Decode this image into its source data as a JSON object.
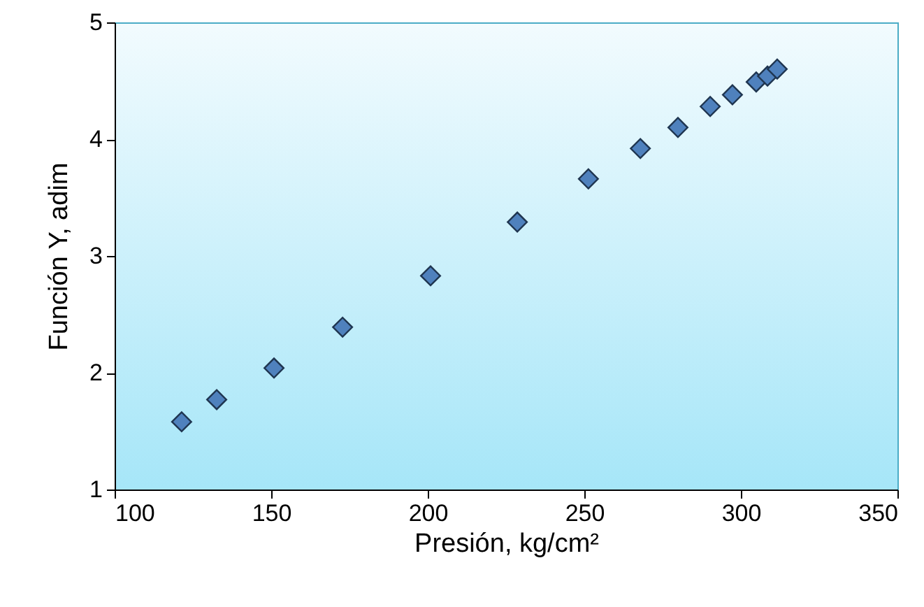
{
  "chart_data": {
    "type": "scatter",
    "xlabel": "Presión, kg/cm²",
    "ylabel": "Función Y, adim",
    "x": [
      121.4,
      132.6,
      150.9,
      172.8,
      200.9,
      228.6,
      251.3,
      267.9,
      279.9,
      290.2,
      297.3,
      304.9,
      308.5,
      311.6
    ],
    "series": [
      {
        "color": "#4f81bd",
        "values": [
          1.58,
          1.77,
          2.04,
          2.39,
          2.83,
          3.29,
          3.66,
          3.92,
          4.1,
          4.28,
          4.38,
          4.49,
          4.54,
          4.6
        ]
      }
    ],
    "xlim": [
      100,
      350
    ],
    "xticks": [
      100,
      150,
      200,
      250,
      300,
      350
    ],
    "ylim": [
      1,
      5
    ],
    "yticks": [
      1,
      2,
      3,
      4,
      5
    ],
    "grid": false,
    "marker": "diamond"
  }
}
